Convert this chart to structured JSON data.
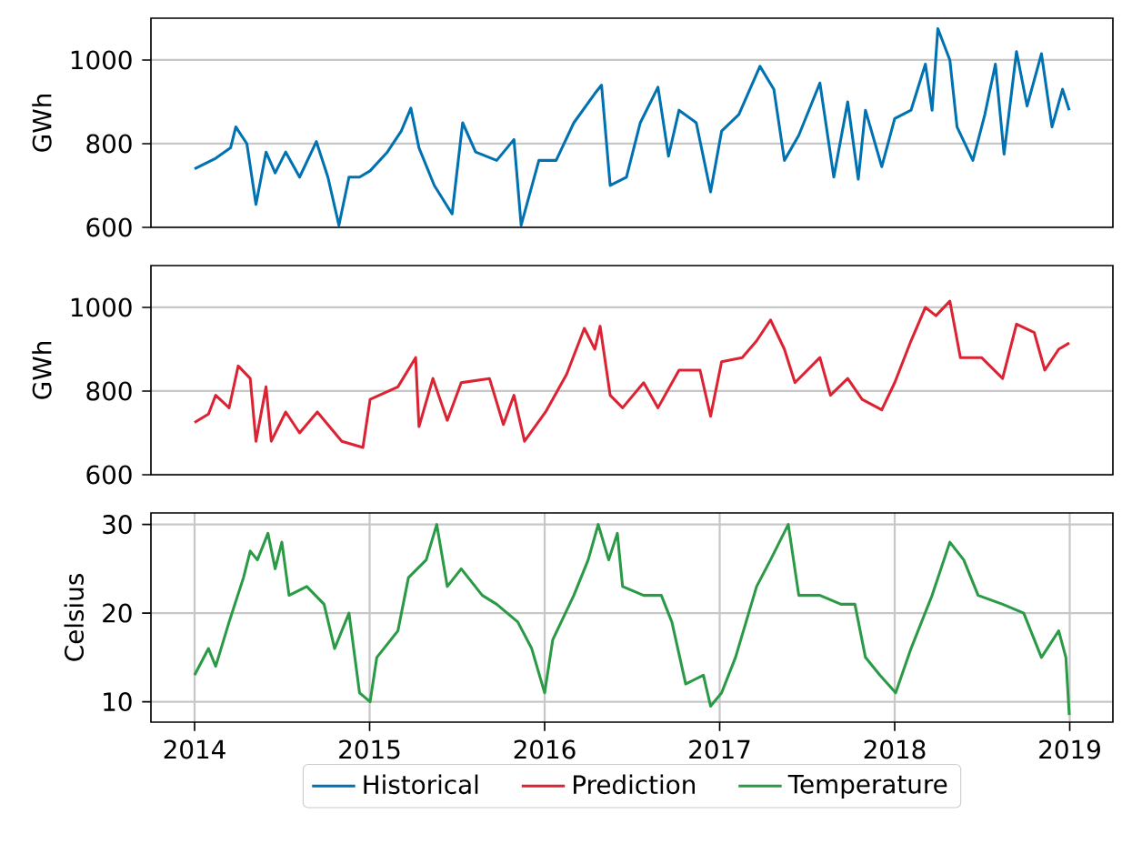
{
  "chart_data": [
    {
      "type": "line",
      "ylabel": "GWh",
      "xlim": [
        "2013-10-02",
        "2019-04-01"
      ],
      "ylim": [
        600,
        1100
      ],
      "yticks": [
        600,
        800,
        1000
      ],
      "grid": "y",
      "tick_labels": "y",
      "x": [
        "2014-01-01",
        "2014-02-14",
        "2014-03-17",
        "2014-03-28",
        "2014-04-20",
        "2014-05-09",
        "2014-05-30",
        "2014-06-18",
        "2014-07-10",
        "2014-08-08",
        "2014-09-12",
        "2014-10-06",
        "2014-10-29",
        "2014-11-19",
        "2014-12-11",
        "2015-01-02",
        "2015-02-07",
        "2015-03-08",
        "2015-03-28",
        "2015-04-14",
        "2015-05-16",
        "2015-06-22",
        "2015-07-14",
        "2015-08-10",
        "2015-09-23",
        "2015-10-29",
        "2015-11-13",
        "2015-12-20",
        "2016-01-25",
        "2016-03-02",
        "2016-04-15",
        "2016-04-29",
        "2016-05-17",
        "2016-06-20",
        "2016-07-19",
        "2016-08-25",
        "2016-09-16",
        "2016-10-08",
        "2016-11-13",
        "2016-12-13",
        "2017-01-05",
        "2017-02-10",
        "2017-03-26",
        "2017-04-24",
        "2017-05-16",
        "2017-06-15",
        "2017-07-29",
        "2017-08-27",
        "2017-09-25",
        "2017-10-17",
        "2017-11-01",
        "2017-12-05",
        "2018-01-01",
        "2018-02-04",
        "2018-03-06",
        "2018-03-20",
        "2018-04-01",
        "2018-04-26",
        "2018-05-11",
        "2018-06-13",
        "2018-07-08",
        "2018-07-30",
        "2018-08-17",
        "2018-09-12",
        "2018-10-04",
        "2018-11-03",
        "2018-11-25",
        "2018-12-17",
        "2018-12-31"
      ],
      "series": [
        {
          "name": "Historical",
          "color": "#0072b2",
          "values": [
            740,
            765,
            790,
            840,
            800,
            655,
            780,
            730,
            780,
            720,
            805,
            720,
            605,
            720,
            720,
            735,
            780,
            830,
            885,
            790,
            700,
            632,
            850,
            780,
            760,
            810,
            605,
            760,
            760,
            850,
            920,
            940,
            700,
            720,
            850,
            935,
            770,
            880,
            850,
            685,
            830,
            870,
            985,
            930,
            760,
            820,
            945,
            720,
            900,
            715,
            880,
            745,
            860,
            880,
            990,
            880,
            1075,
            1000,
            840,
            760,
            870,
            990,
            775,
            1020,
            890,
            1015,
            840,
            930,
            880
          ]
        }
      ]
    },
    {
      "type": "line",
      "ylabel": "GWh",
      "xlim": [
        "2013-10-02",
        "2019-04-01"
      ],
      "ylim": [
        600,
        1100
      ],
      "yticks": [
        600,
        800,
        1000
      ],
      "grid": "y",
      "tick_labels": "y",
      "x": [
        "2014-01-01",
        "2014-01-30",
        "2014-02-14",
        "2014-03-14",
        "2014-04-02",
        "2014-04-27",
        "2014-05-09",
        "2014-05-30",
        "2014-06-10",
        "2014-07-10",
        "2014-08-08",
        "2014-09-14",
        "2014-11-04",
        "2014-12-18",
        "2015-01-02",
        "2015-03-01",
        "2015-04-07",
        "2015-04-14",
        "2015-05-13",
        "2015-06-12",
        "2015-07-11",
        "2015-09-08",
        "2015-10-07",
        "2015-10-29",
        "2015-11-20",
        "2016-01-03",
        "2016-02-16",
        "2016-03-24",
        "2016-04-15",
        "2016-04-26",
        "2016-05-17",
        "2016-06-12",
        "2016-07-26",
        "2016-08-25",
        "2016-10-08",
        "2016-11-21",
        "2016-12-13",
        "2017-01-05",
        "2017-02-17",
        "2017-03-19",
        "2017-04-17",
        "2017-05-16",
        "2017-06-07",
        "2017-07-29",
        "2017-08-20",
        "2017-09-25",
        "2017-10-25",
        "2017-12-05",
        "2018-01-01",
        "2018-02-04",
        "2018-03-06",
        "2018-03-28",
        "2018-04-26",
        "2018-05-18",
        "2018-07-01",
        "2018-08-14",
        "2018-09-12",
        "2018-10-19",
        "2018-11-10",
        "2018-12-09",
        "2018-12-31"
      ],
      "series": [
        {
          "name": "Prediction",
          "color": "#dc2334",
          "values": [
            725,
            745,
            790,
            760,
            860,
            830,
            680,
            810,
            680,
            750,
            700,
            750,
            680,
            665,
            780,
            810,
            880,
            715,
            830,
            730,
            820,
            830,
            720,
            790,
            680,
            750,
            840,
            950,
            900,
            955,
            790,
            760,
            820,
            760,
            850,
            850,
            740,
            870,
            880,
            920,
            970,
            900,
            820,
            880,
            790,
            830,
            780,
            755,
            820,
            920,
            1000,
            980,
            1015,
            880,
            880,
            830,
            960,
            940,
            850,
            900,
            915
          ]
        }
      ]
    },
    {
      "type": "line",
      "ylabel": "Celsius",
      "xlim": [
        "2013-10-02",
        "2019-04-01"
      ],
      "ylim": [
        7.7,
        31.3
      ],
      "yticks": [
        10,
        20,
        30
      ],
      "xticks": [
        "2014",
        "2015",
        "2016",
        "2017",
        "2018",
        "2019"
      ],
      "grid": true,
      "legend": "bottom",
      "x": [
        "2014-01-01",
        "2014-01-30",
        "2014-02-14",
        "2014-03-14",
        "2014-04-13",
        "2014-04-27",
        "2014-05-12",
        "2014-06-03",
        "2014-06-18",
        "2014-07-02",
        "2014-07-17",
        "2014-08-23",
        "2014-09-28",
        "2014-10-20",
        "2014-11-19",
        "2014-12-11",
        "2015-01-02",
        "2015-01-16",
        "2015-03-01",
        "2015-03-23",
        "2015-04-29",
        "2015-05-21",
        "2015-06-12",
        "2015-07-11",
        "2015-08-24",
        "2015-09-23",
        "2015-11-06",
        "2015-12-05",
        "2016-01-01",
        "2016-01-18",
        "2016-03-02",
        "2016-04-01",
        "2016-04-22",
        "2016-05-14",
        "2016-06-01",
        "2016-06-12",
        "2016-07-26",
        "2016-09-01",
        "2016-09-23",
        "2016-10-22",
        "2016-11-28",
        "2016-12-13",
        "2017-01-05",
        "2017-02-03",
        "2017-03-19",
        "2017-04-17",
        "2017-05-24",
        "2017-06-15",
        "2017-07-29",
        "2017-09-11",
        "2017-10-10",
        "2017-11-01",
        "2017-12-01",
        "2018-01-03",
        "2018-02-04",
        "2018-03-20",
        "2018-04-26",
        "2018-05-25",
        "2018-06-24",
        "2018-08-14",
        "2018-09-27",
        "2018-11-03",
        "2018-12-09",
        "2018-12-24",
        "2018-12-31"
      ],
      "series": [
        {
          "name": "Temperature",
          "color": "#2a9a46",
          "values": [
            13,
            16,
            14,
            19,
            24,
            27,
            26,
            29,
            25,
            28,
            22,
            23,
            21,
            16,
            20,
            11,
            10,
            15,
            18,
            24,
            26,
            30,
            23,
            25,
            22,
            21,
            19,
            16,
            11,
            17,
            22,
            26,
            30,
            26,
            29,
            23,
            22,
            22,
            19,
            12,
            13,
            9.5,
            11,
            15,
            23,
            26,
            30,
            22,
            22,
            21,
            21,
            15,
            13,
            11,
            16,
            22,
            28,
            26,
            22,
            21,
            20,
            15,
            18,
            15,
            8.5
          ]
        }
      ]
    }
  ]
}
